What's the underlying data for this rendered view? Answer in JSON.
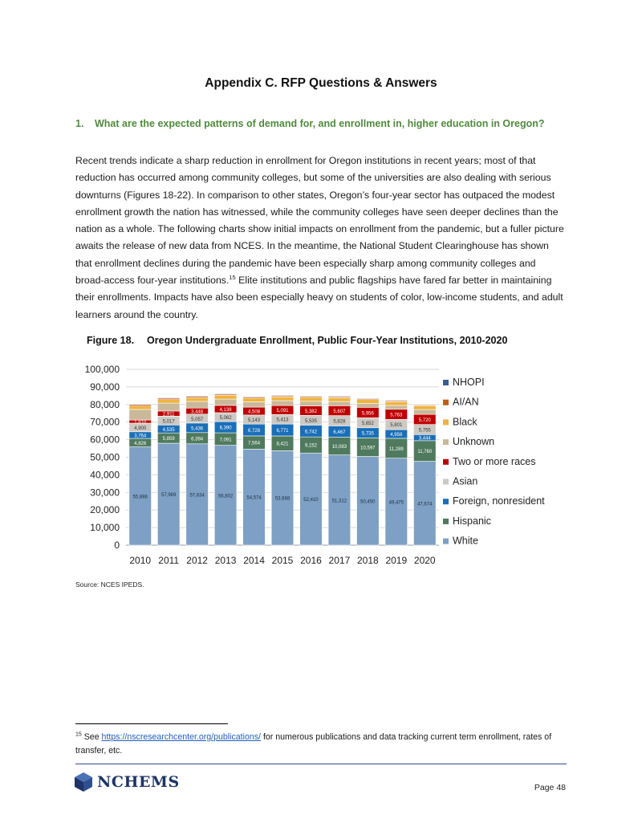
{
  "header": {
    "title": "Appendix C. RFP Questions & Answers"
  },
  "question": {
    "number": "1.",
    "text": "What are the expected patterns of demand for, and enrollment in, higher education in Oregon?"
  },
  "body": {
    "text_before_ref": "Recent trends indicate a sharp reduction in enrollment for Oregon institutions in recent years; most of that reduction has occurred among community colleges, but some of the universities are also dealing with serious downturns (Figures 18-22). In comparison to other states, Oregon’s four-year sector has outpaced the modest enrollment growth the nation has witnessed, while the community colleges have seen deeper declines than the nation as a whole. The following charts show initial impacts on enrollment from the pandemic, but a fuller picture awaits the release of new data from NCES. In the meantime, the National Student Clearinghouse has shown that enrollment declines during the pandemic have been especially sharp among community colleges and broad-access four-year institutions.",
    "footnote_ref": "15",
    "text_after_ref": " Elite institutions and public flagships have fared far better in maintaining their enrollments. Impacts have also been especially heavy on students of color, low-income students, and adult learners around the country."
  },
  "figure": {
    "label": "Figure 18.",
    "title": "Oregon Undergraduate Enrollment, Public Four-Year Institutions, 2010-2020",
    "source": "Source: NCES IPEDS."
  },
  "chart_data": {
    "type": "bar",
    "stacked": true,
    "categories": [
      "2010",
      "2011",
      "2012",
      "2013",
      "2014",
      "2015",
      "2016",
      "2017",
      "2018",
      "2019",
      "2020"
    ],
    "ylim": [
      0,
      100000
    ],
    "yticks": [
      0,
      10000,
      20000,
      30000,
      40000,
      50000,
      60000,
      70000,
      80000,
      90000,
      100000
    ],
    "ytick_labels": [
      "0",
      "10,000",
      "20,000",
      "30,000",
      "40,000",
      "50,000",
      "60,000",
      "70,000",
      "80,000",
      "90,000",
      "100,000"
    ],
    "grid": true,
    "legend_position": "right",
    "series": [
      {
        "name": "White",
        "color": "#7da0c4",
        "label_color": "#1f2f45",
        "values": [
          55888,
          57969,
          57634,
          56802,
          54574,
          53688,
          52410,
          51312,
          50450,
          49475,
          47674
        ],
        "labels": [
          "55,888",
          "57,969",
          "57,634",
          "56,802",
          "54,574",
          "53,688",
          "52,410",
          "51,312",
          "50,450",
          "49,475",
          "47,674"
        ]
      },
      {
        "name": "Hispanic",
        "color": "#4f7a5d",
        "label_color": "#ffffff",
        "values": [
          4826,
          5859,
          6394,
          7091,
          7564,
          8421,
          9152,
          10083,
          10597,
          11289,
          11760
        ],
        "labels": [
          "4,826",
          "5,859",
          "6,394",
          "7,091",
          "7,564",
          "8,421",
          "9,152",
          "10,083",
          "10,597",
          "11,289",
          "11,760"
        ]
      },
      {
        "name": "Foreign, nonresident",
        "color": "#1a6fb8",
        "label_color": "#ffffff",
        "values": [
          3764,
          4535,
          5436,
          6390,
          6728,
          6771,
          6742,
          6467,
          5735,
          4958,
          3444
        ],
        "labels": [
          "3,764",
          "4,535",
          "5,436",
          "6,390",
          "6,728",
          "6,771",
          "6,742",
          "6,467",
          "5,735",
          "4,958",
          "3,444"
        ]
      },
      {
        "name": "Asian",
        "color": "#cdc9c3",
        "label_color": "#333333",
        "values": [
          4900,
          5017,
          5057,
          5062,
          5143,
          5413,
          5535,
          5828,
          5652,
          5801,
          5755
        ],
        "labels": [
          "4,900",
          "5,017",
          "5,057",
          "5,062",
          "5,143",
          "5,413",
          "5,535",
          "5,828",
          "5,652",
          "5,801",
          "5,755"
        ]
      },
      {
        "name": "Two or more races",
        "color": "#c00000",
        "label_color": "#ffffff",
        "values": [
          1810,
          2911,
          3448,
          4138,
          4508,
          5091,
          5382,
          5607,
          5956,
          5763,
          5720
        ],
        "labels": [
          "1,810",
          "2,911",
          "3,448",
          "4,138",
          "4,508",
          "5,091",
          "5,382",
          "5,607",
          "5,956",
          "5,763",
          "5,720"
        ]
      },
      {
        "name": "Unknown",
        "color": "#c9b99a",
        "label_color": "#333333",
        "values": [
          6000,
          4500,
          3800,
          3600,
          3000,
          2800,
          2600,
          2400,
          2300,
          2200,
          2800
        ],
        "labels": []
      },
      {
        "name": "Black",
        "color": "#f0b43c",
        "label_color": "#333333",
        "values": [
          1900,
          2000,
          2050,
          2100,
          2100,
          2150,
          2150,
          2150,
          2100,
          2100,
          2100
        ],
        "labels": []
      },
      {
        "name": "AI/AN",
        "color": "#c55a11",
        "label_color": "#333333",
        "values": [
          850,
          800,
          750,
          700,
          650,
          600,
          580,
          560,
          540,
          520,
          500
        ],
        "labels": []
      },
      {
        "name": "NHOPI",
        "color": "#3a5c8e",
        "label_color": "#333333",
        "values": [
          350,
          350,
          350,
          350,
          350,
          350,
          350,
          350,
          340,
          330,
          320
        ],
        "labels": []
      }
    ],
    "legend_order": [
      "NHOPI",
      "AI/AN",
      "Black",
      "Unknown",
      "Two or more races",
      "Asian",
      "Foreign, nonresident",
      "Hispanic",
      "White"
    ]
  },
  "footnote": {
    "number": "15",
    "text_before": " See ",
    "link": "https://nscresearchcenter.org/publications/",
    "text_after": " for numerous publications and data tracking current term enrollment, rates of transfer, etc."
  },
  "footer": {
    "logo_text": "NCHEMS",
    "logo_icon": "nchems-cube-icon",
    "page_number": "Page 48"
  }
}
